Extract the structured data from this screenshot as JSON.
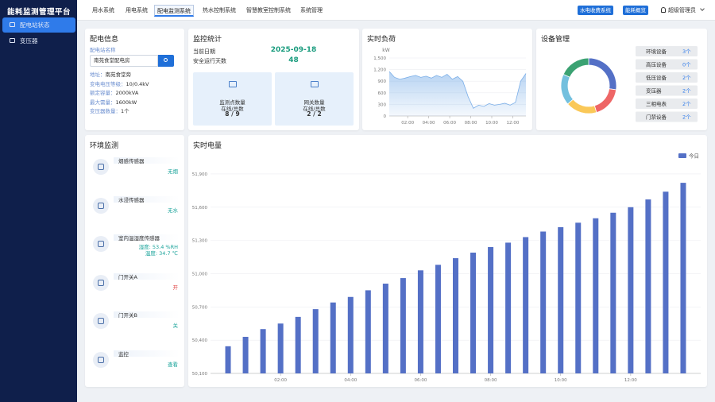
{
  "sidebar": {
    "title": "能耗监测管理平台",
    "menu": [
      "配电站状态",
      "变压器"
    ]
  },
  "nav": {
    "tabs": [
      "用水系统",
      "用电系统",
      "配电监测系统",
      "热水控制系统",
      "智慧教室控制系统",
      "系统管理"
    ],
    "active_tab": 2,
    "buttons": [
      "水电收费系统",
      "能耗概览"
    ],
    "user": "超级管理员"
  },
  "power_info": {
    "title": "配电信息",
    "name_label": "配电站名称",
    "name_value": "南苑食堂配电房",
    "details": [
      {
        "label": "地址：",
        "value": "南苑食堂旁"
      },
      {
        "label": "变电电压等级：",
        "value": "10/0.4kV"
      },
      {
        "label": "额定容量：",
        "value": "2000kVA"
      },
      {
        "label": "最大需量：",
        "value": "1600kW"
      },
      {
        "label": "变压器数量：",
        "value": "1个"
      }
    ]
  },
  "monitor_stats": {
    "title": "监控统计",
    "date_label": "当前日期",
    "date": "2025-09-18",
    "days_label": "安全运行天数",
    "days": 48,
    "cards": [
      {
        "label": "监测点数量",
        "sub": "在线/总数",
        "value": "8 / 9"
      },
      {
        "label": "网关数量",
        "sub": "在线/总数",
        "value": "2 / 2"
      }
    ]
  },
  "environment": {
    "title": "环境监测",
    "sensors": [
      {
        "name": "烟感传感器",
        "status": [
          "无烟"
        ],
        "color": "#1aa39a"
      },
      {
        "name": "水浸传感器",
        "status": [
          "无水"
        ],
        "color": "#1aa39a"
      },
      {
        "name": "室内温湿度传感器",
        "status": [
          "湿度: 53.4 %RH",
          "温度: 34.7 ℃"
        ],
        "color": "#1aa39a"
      },
      {
        "name": "门开关A",
        "status": [
          "开"
        ],
        "color": "#e04848"
      },
      {
        "name": "门开关B",
        "status": [
          "关"
        ],
        "color": "#1aa39a"
      },
      {
        "name": "监控",
        "status": [
          "查看"
        ],
        "color": "#1aa39a"
      }
    ]
  },
  "chart_data": [
    {
      "type": "line",
      "title": "实时负荷",
      "y_label": "kW",
      "color": "#7aaee8",
      "fill": true,
      "x": [
        0.25,
        0.75,
        1.25,
        1.75,
        2.25,
        2.75,
        3.25,
        3.75,
        4.25,
        4.75,
        5.25,
        5.75,
        6.25,
        6.75,
        7.25,
        7.75,
        8.25,
        8.75,
        9.25,
        9.75,
        10.25,
        10.75,
        11.25,
        11.75,
        12.25,
        12.75,
        13.25
      ],
      "values": [
        1150,
        1000,
        950,
        980,
        1020,
        1050,
        1000,
        1030,
        980,
        1050,
        1000,
        1080,
        950,
        1020,
        900,
        500,
        200,
        280,
        250,
        320,
        280,
        300,
        330,
        280,
        350,
        900,
        1100
      ],
      "xlim": [
        0.25,
        13.25
      ],
      "xticks": [
        {
          "value": 2,
          "label": "02:00"
        },
        {
          "value": 4,
          "label": "04:00"
        },
        {
          "value": 6,
          "label": "06:00"
        },
        {
          "value": 8,
          "label": "08:00"
        },
        {
          "value": 10,
          "label": "10:00"
        },
        {
          "value": 12,
          "label": "12:00"
        }
      ],
      "ylim": [
        0,
        1500
      ],
      "yticks": [
        0,
        300,
        600,
        900,
        {
          "value": 1200,
          "label": "1,200"
        },
        {
          "value": 1500,
          "label": "1,500"
        }
      ],
      "grid": true
    },
    {
      "type": "pie",
      "title": "设备管理",
      "donut": true,
      "categories": [
        "环境设备",
        "高压设备",
        "低压设备",
        "变压器",
        "三相电表",
        "门禁设备"
      ],
      "values": [
        3,
        0,
        2,
        2,
        2,
        2
      ],
      "value_labels": [
        "3个",
        "0个",
        "2个",
        "2个",
        "2个",
        "2个"
      ],
      "colors": [
        "#5470c6",
        "#91cc75",
        "#ee6666",
        "#fac858",
        "#73c0de",
        "#3ba272"
      ]
    },
    {
      "type": "bar",
      "title": "实时电量",
      "x": [
        0.5,
        1,
        1.5,
        2,
        2.5,
        3,
        3.5,
        4,
        4.5,
        5,
        5.5,
        6,
        6.5,
        7,
        7.5,
        8,
        8.5,
        9,
        9.5,
        10,
        10.5,
        11,
        11.5,
        12,
        12.5,
        13,
        13.5
      ],
      "series": [
        {
          "name": "今日",
          "color": "#5470c6",
          "values": [
            50345,
            50430,
            50500,
            50550,
            50610,
            50680,
            50740,
            50790,
            50850,
            50910,
            50960,
            51030,
            51080,
            51140,
            51190,
            51240,
            51280,
            51330,
            51380,
            51420,
            51460,
            51500,
            51550,
            51600,
            51670,
            51740,
            51820
          ]
        }
      ],
      "xlim": [
        0,
        14
      ],
      "xticks": [
        {
          "value": 2,
          "label": "02:00"
        },
        {
          "value": 4,
          "label": "04:00"
        },
        {
          "value": 6,
          "label": "06:00"
        },
        {
          "value": 8,
          "label": "08:00"
        },
        {
          "value": 10,
          "label": "10:00"
        },
        {
          "value": 12,
          "label": "12:00"
        }
      ],
      "ylim": [
        50100,
        52000
      ],
      "yticks": [
        {
          "value": 50100,
          "label": "50,100"
        },
        {
          "value": 50400,
          "label": "50,400"
        },
        {
          "value": 50700,
          "label": "50,700"
        },
        {
          "value": 51000,
          "label": "51,000"
        },
        {
          "value": 51300,
          "label": "51,300"
        },
        {
          "value": 51600,
          "label": "51,600"
        },
        {
          "value": 51900,
          "label": "51,900"
        }
      ],
      "grid": true,
      "legend": "top-right"
    }
  ]
}
